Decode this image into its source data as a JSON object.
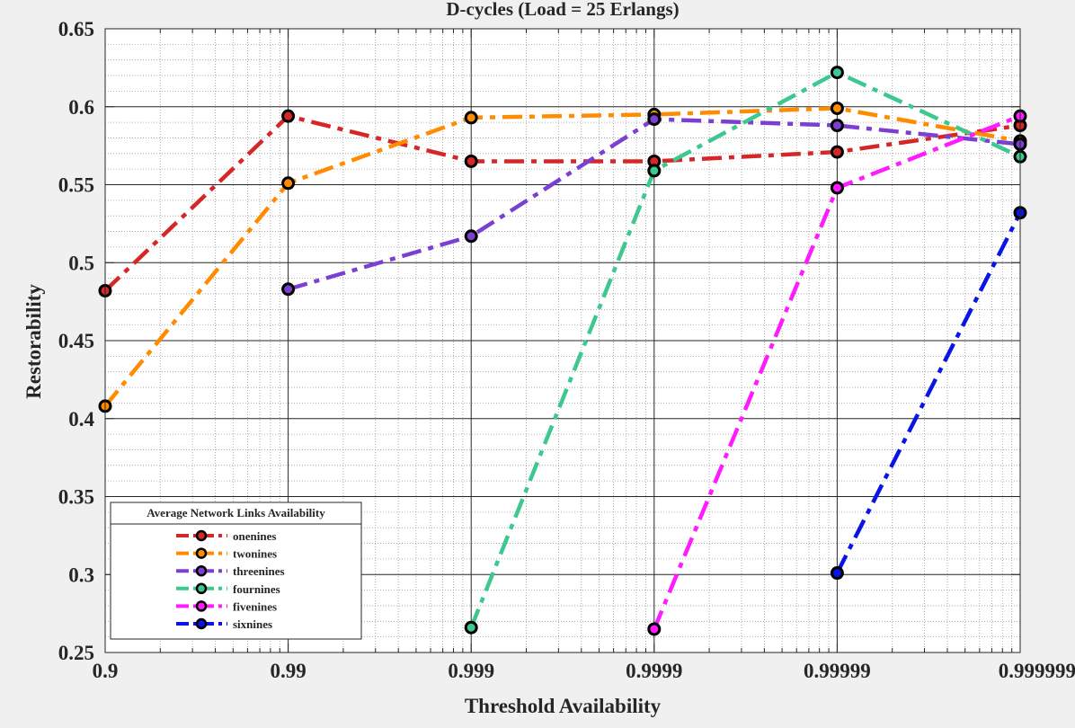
{
  "chart_data": {
    "type": "line",
    "title": "D-cycles (Load  = 25 Erlangs)",
    "xlabel": "Threshold Availability",
    "ylabel": "Restorability",
    "x_scale": "log-nines",
    "categories": [
      "0.9",
      "0.99",
      "0.999",
      "0.9999",
      "0.99999",
      "0.999999"
    ],
    "ylim": [
      0.25,
      0.65
    ],
    "yticks": [
      "0.25",
      "0.3",
      "0.35",
      "0.4",
      "0.45",
      "0.5",
      "0.55",
      "0.6",
      "0.65"
    ],
    "grid": true,
    "minor_grid": true,
    "legend": {
      "title": "Average Network Links Availability",
      "position": "bottom-left"
    },
    "series": [
      {
        "name": "onenines",
        "color": "#d62728",
        "marker_face": "#d62728",
        "x": [
          "0.9",
          "0.99",
          "0.999",
          "0.9999",
          "0.99999",
          "0.999999"
        ],
        "values": [
          0.482,
          0.594,
          0.565,
          0.565,
          0.571,
          0.588
        ]
      },
      {
        "name": "twonines",
        "color": "#ff8c00",
        "marker_face": "#ff8c00",
        "x": [
          "0.9",
          "0.99",
          "0.999",
          "0.9999",
          "0.99999",
          "0.999999"
        ],
        "values": [
          0.408,
          0.551,
          0.593,
          0.595,
          0.599,
          0.578
        ]
      },
      {
        "name": "threenines",
        "color": "#7b3fd1",
        "marker_face": "#7b3fd1",
        "x": [
          "0.99",
          "0.999",
          "0.9999",
          "0.99999",
          "0.999999"
        ],
        "values": [
          0.483,
          0.517,
          0.592,
          0.588,
          0.576
        ]
      },
      {
        "name": "fournines",
        "color": "#3cc88f",
        "marker_face": "#3cc88f",
        "x": [
          "0.999",
          "0.9999",
          "0.99999",
          "0.999999"
        ],
        "values": [
          0.266,
          0.559,
          0.622,
          0.568
        ]
      },
      {
        "name": "fivenines",
        "color": "#ff1aff",
        "marker_face": "#ff1aff",
        "x": [
          "0.9999",
          "0.99999",
          "0.999999"
        ],
        "values": [
          0.265,
          0.548,
          0.594
        ]
      },
      {
        "name": "sixnines",
        "color": "#0a14e6",
        "marker_face": "#0a14e6",
        "x": [
          "0.99999",
          "0.999999"
        ],
        "values": [
          0.301,
          0.532
        ]
      }
    ]
  }
}
